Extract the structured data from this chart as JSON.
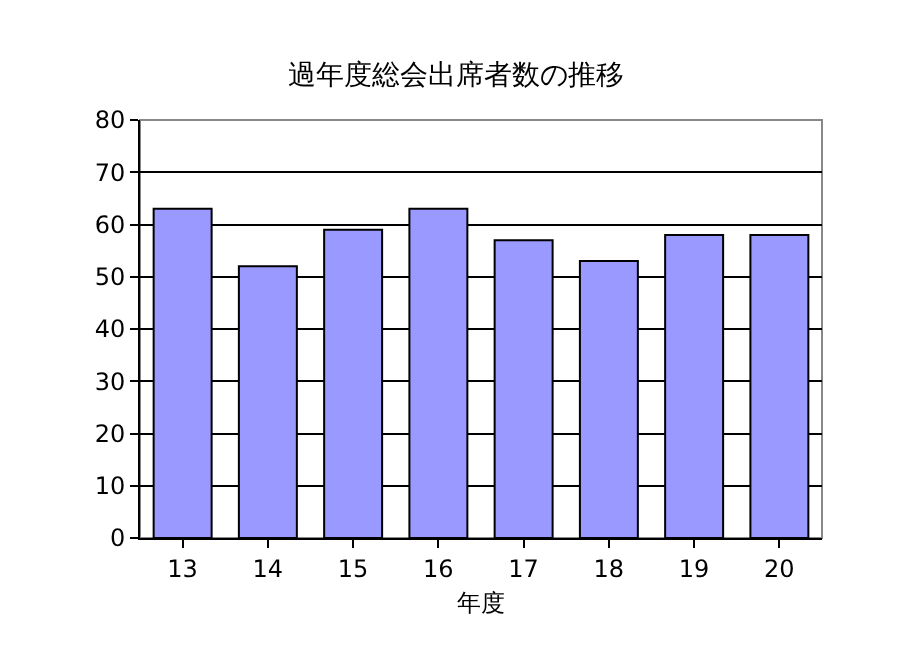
{
  "chart_data": {
    "type": "bar",
    "title": "過年度総会出席者数の推移",
    "xlabel": "年度",
    "categories": [
      "13",
      "14",
      "15",
      "16",
      "17",
      "18",
      "19",
      "20"
    ],
    "values": [
      63,
      52,
      59,
      63,
      57,
      53,
      58,
      58
    ],
    "color": "#9999ff",
    "ylim": [
      0,
      80
    ],
    "yticks": [
      0,
      10,
      20,
      30,
      40,
      50,
      60,
      70,
      80
    ],
    "grid": "y"
  }
}
